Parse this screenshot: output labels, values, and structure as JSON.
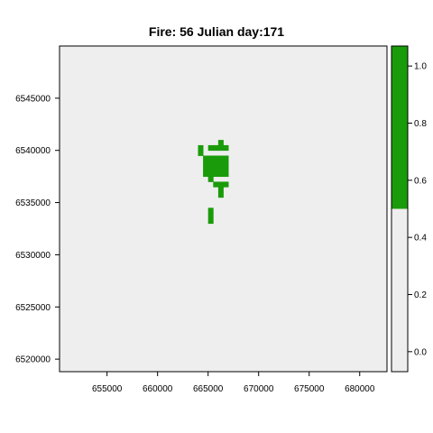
{
  "chart_data": {
    "type": "heatmap",
    "title": "Fire: 56   Julian day:171",
    "xlim": [
      650300,
      682700
    ],
    "ylim": [
      6518800,
      6550000
    ],
    "x_ticks": [
      655000,
      660000,
      665000,
      670000,
      675000,
      680000
    ],
    "x_tick_labels": [
      "655000",
      "660000",
      "665000",
      "670000",
      "675000",
      "680000"
    ],
    "y_ticks": [
      6520000,
      6525000,
      6530000,
      6535000,
      6540000,
      6545000
    ],
    "y_tick_labels": [
      "6520000",
      "6525000",
      "6530000",
      "6535000",
      "6540000",
      "6545000"
    ],
    "cell_size": 500,
    "background_value": 0,
    "burned_value": 1,
    "burned_cells": [
      [
        664250,
        6539750
      ],
      [
        665250,
        6540250
      ],
      [
        666250,
        6540750
      ],
      [
        664250,
        6540250
      ],
      [
        665750,
        6540250
      ],
      [
        666250,
        6540250
      ],
      [
        666750,
        6540250
      ],
      [
        664750,
        6539250
      ],
      [
        665250,
        6539250
      ],
      [
        665750,
        6539250
      ],
      [
        666250,
        6539250
      ],
      [
        666750,
        6539250
      ],
      [
        664750,
        6538750
      ],
      [
        665250,
        6538750
      ],
      [
        665750,
        6538750
      ],
      [
        666250,
        6538750
      ],
      [
        666750,
        6538750
      ],
      [
        664750,
        6538250
      ],
      [
        665250,
        6538250
      ],
      [
        665750,
        6538250
      ],
      [
        666250,
        6538250
      ],
      [
        666750,
        6538250
      ],
      [
        664750,
        6537750
      ],
      [
        665250,
        6537750
      ],
      [
        665750,
        6537750
      ],
      [
        666250,
        6537750
      ],
      [
        666750,
        6537750
      ],
      [
        665250,
        6537250
      ],
      [
        665750,
        6536750
      ],
      [
        666250,
        6536750
      ],
      [
        666750,
        6536750
      ],
      [
        666250,
        6536250
      ],
      [
        666250,
        6535750
      ],
      [
        665250,
        6534250
      ],
      [
        665250,
        6533750
      ],
      [
        665250,
        6533250
      ]
    ],
    "colorbar": {
      "range": [
        -0.07,
        1.07
      ],
      "ticks": [
        0.0,
        0.2,
        0.4,
        0.6,
        0.8,
        1.0
      ],
      "tick_labels": [
        "0.0",
        "0.2",
        "0.4",
        "0.6",
        "0.8",
        "1.0"
      ],
      "breakpoint": 0.5,
      "low_color": "#EEEEEE",
      "high_color": "#1A9B0A"
    },
    "colors": {
      "background": "#EEEEEE",
      "burned": "#1A9B0A",
      "axis": "#000000"
    }
  }
}
